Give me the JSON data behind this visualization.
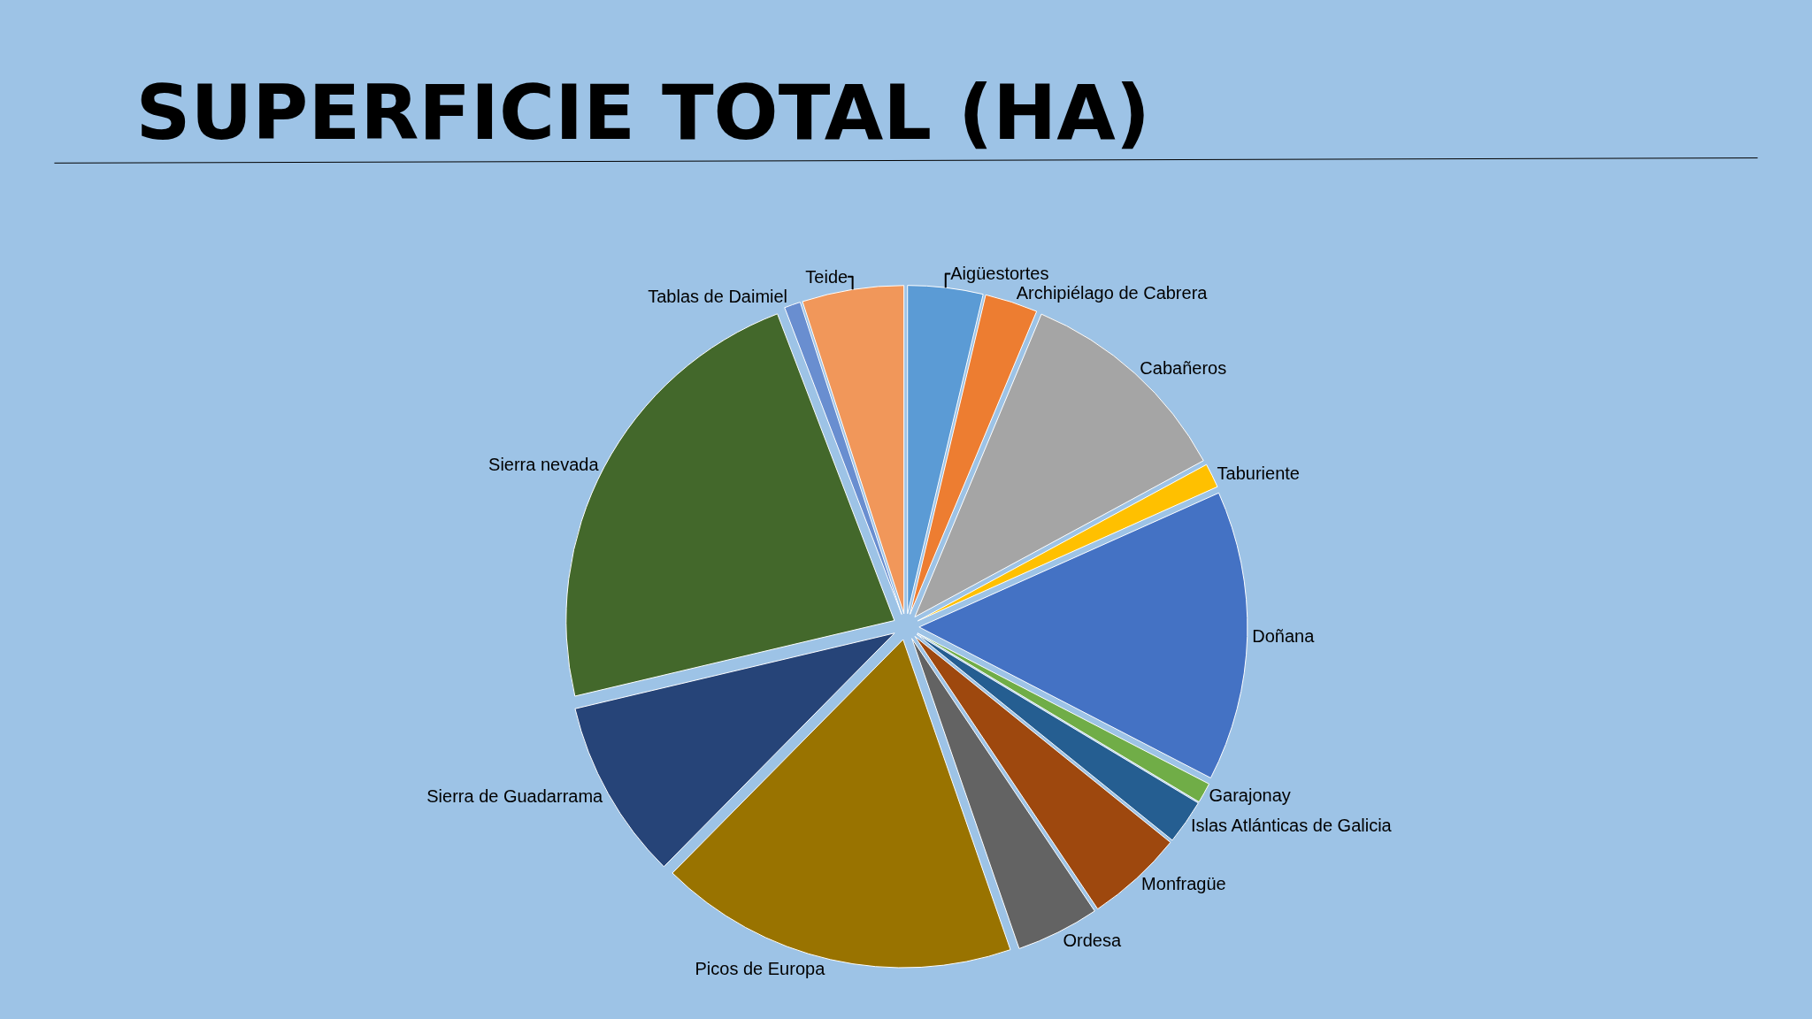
{
  "chart_data": {
    "type": "pie",
    "title": "SUPERFICIE TOTAL (HA)",
    "categories": [
      "Aigüestortes",
      "Archipiélago de Cabrera",
      "Cabañeros",
      "Taburiente",
      "Doñana",
      "Garajonay",
      "Islas Atlánticas de Galicia",
      "Monfragüe",
      "Ordesa",
      "Picos de Europa",
      "Sierra de Guadarrama",
      "Sierra nevada",
      "Tablas de Daimiel",
      "Teide"
    ],
    "values": [
      3.7,
      2.6,
      10.8,
      1.2,
      14.3,
      1.0,
      2.2,
      4.8,
      4.1,
      17.7,
      8.9,
      22.9,
      0.8,
      5.0
    ],
    "colors": [
      "#5b9bd5",
      "#ed7d31",
      "#a5a5a5",
      "#ffc000",
      "#4472c4",
      "#70ad47",
      "#255e91",
      "#9e480e",
      "#636363",
      "#997300",
      "#264478",
      "#43682b",
      "#698ed0",
      "#f1975a"
    ],
    "legend": false
  }
}
